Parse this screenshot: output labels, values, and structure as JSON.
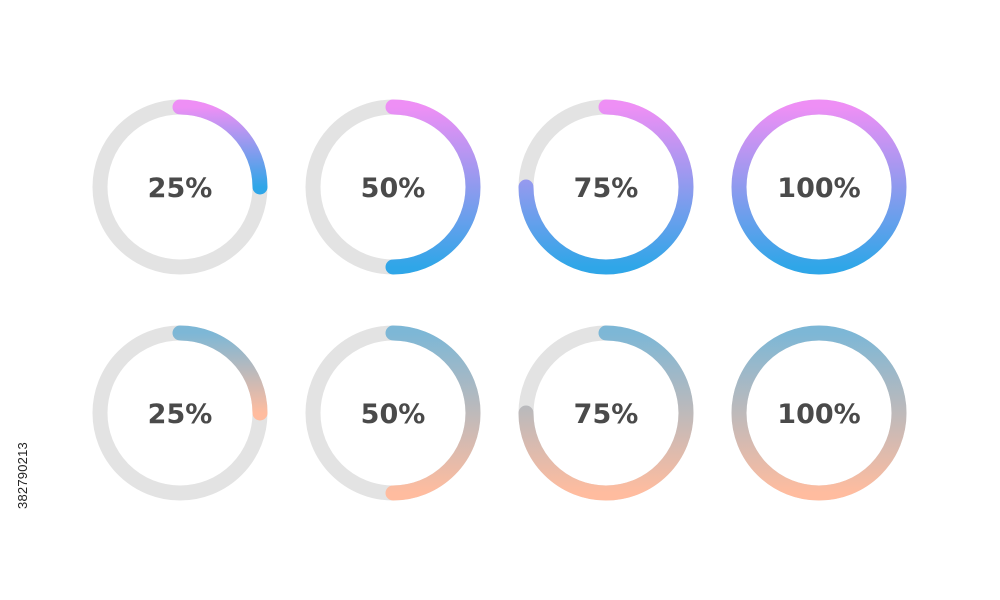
{
  "rows": [
    {
      "gradient": [
        "#ee8ff5",
        "#2fa6e8"
      ],
      "rings": [
        {
          "label": "25%",
          "progress": 0.25
        },
        {
          "label": "50%",
          "progress": 0.5
        },
        {
          "label": "75%",
          "progress": 0.75
        },
        {
          "label": "100%",
          "progress": 1.0
        }
      ]
    },
    {
      "gradient": [
        "#7db7d6",
        "#ffbc9f"
      ],
      "rings": [
        {
          "label": "25%",
          "progress": 0.25
        },
        {
          "label": "50%",
          "progress": 0.5
        },
        {
          "label": "75%",
          "progress": 0.75
        },
        {
          "label": "100%",
          "progress": 1.0
        }
      ]
    }
  ],
  "colors": {
    "track": "#e3e3e3",
    "label": "#4a4a4a",
    "background": "#ffffff"
  },
  "watermark_id": "382790213"
}
